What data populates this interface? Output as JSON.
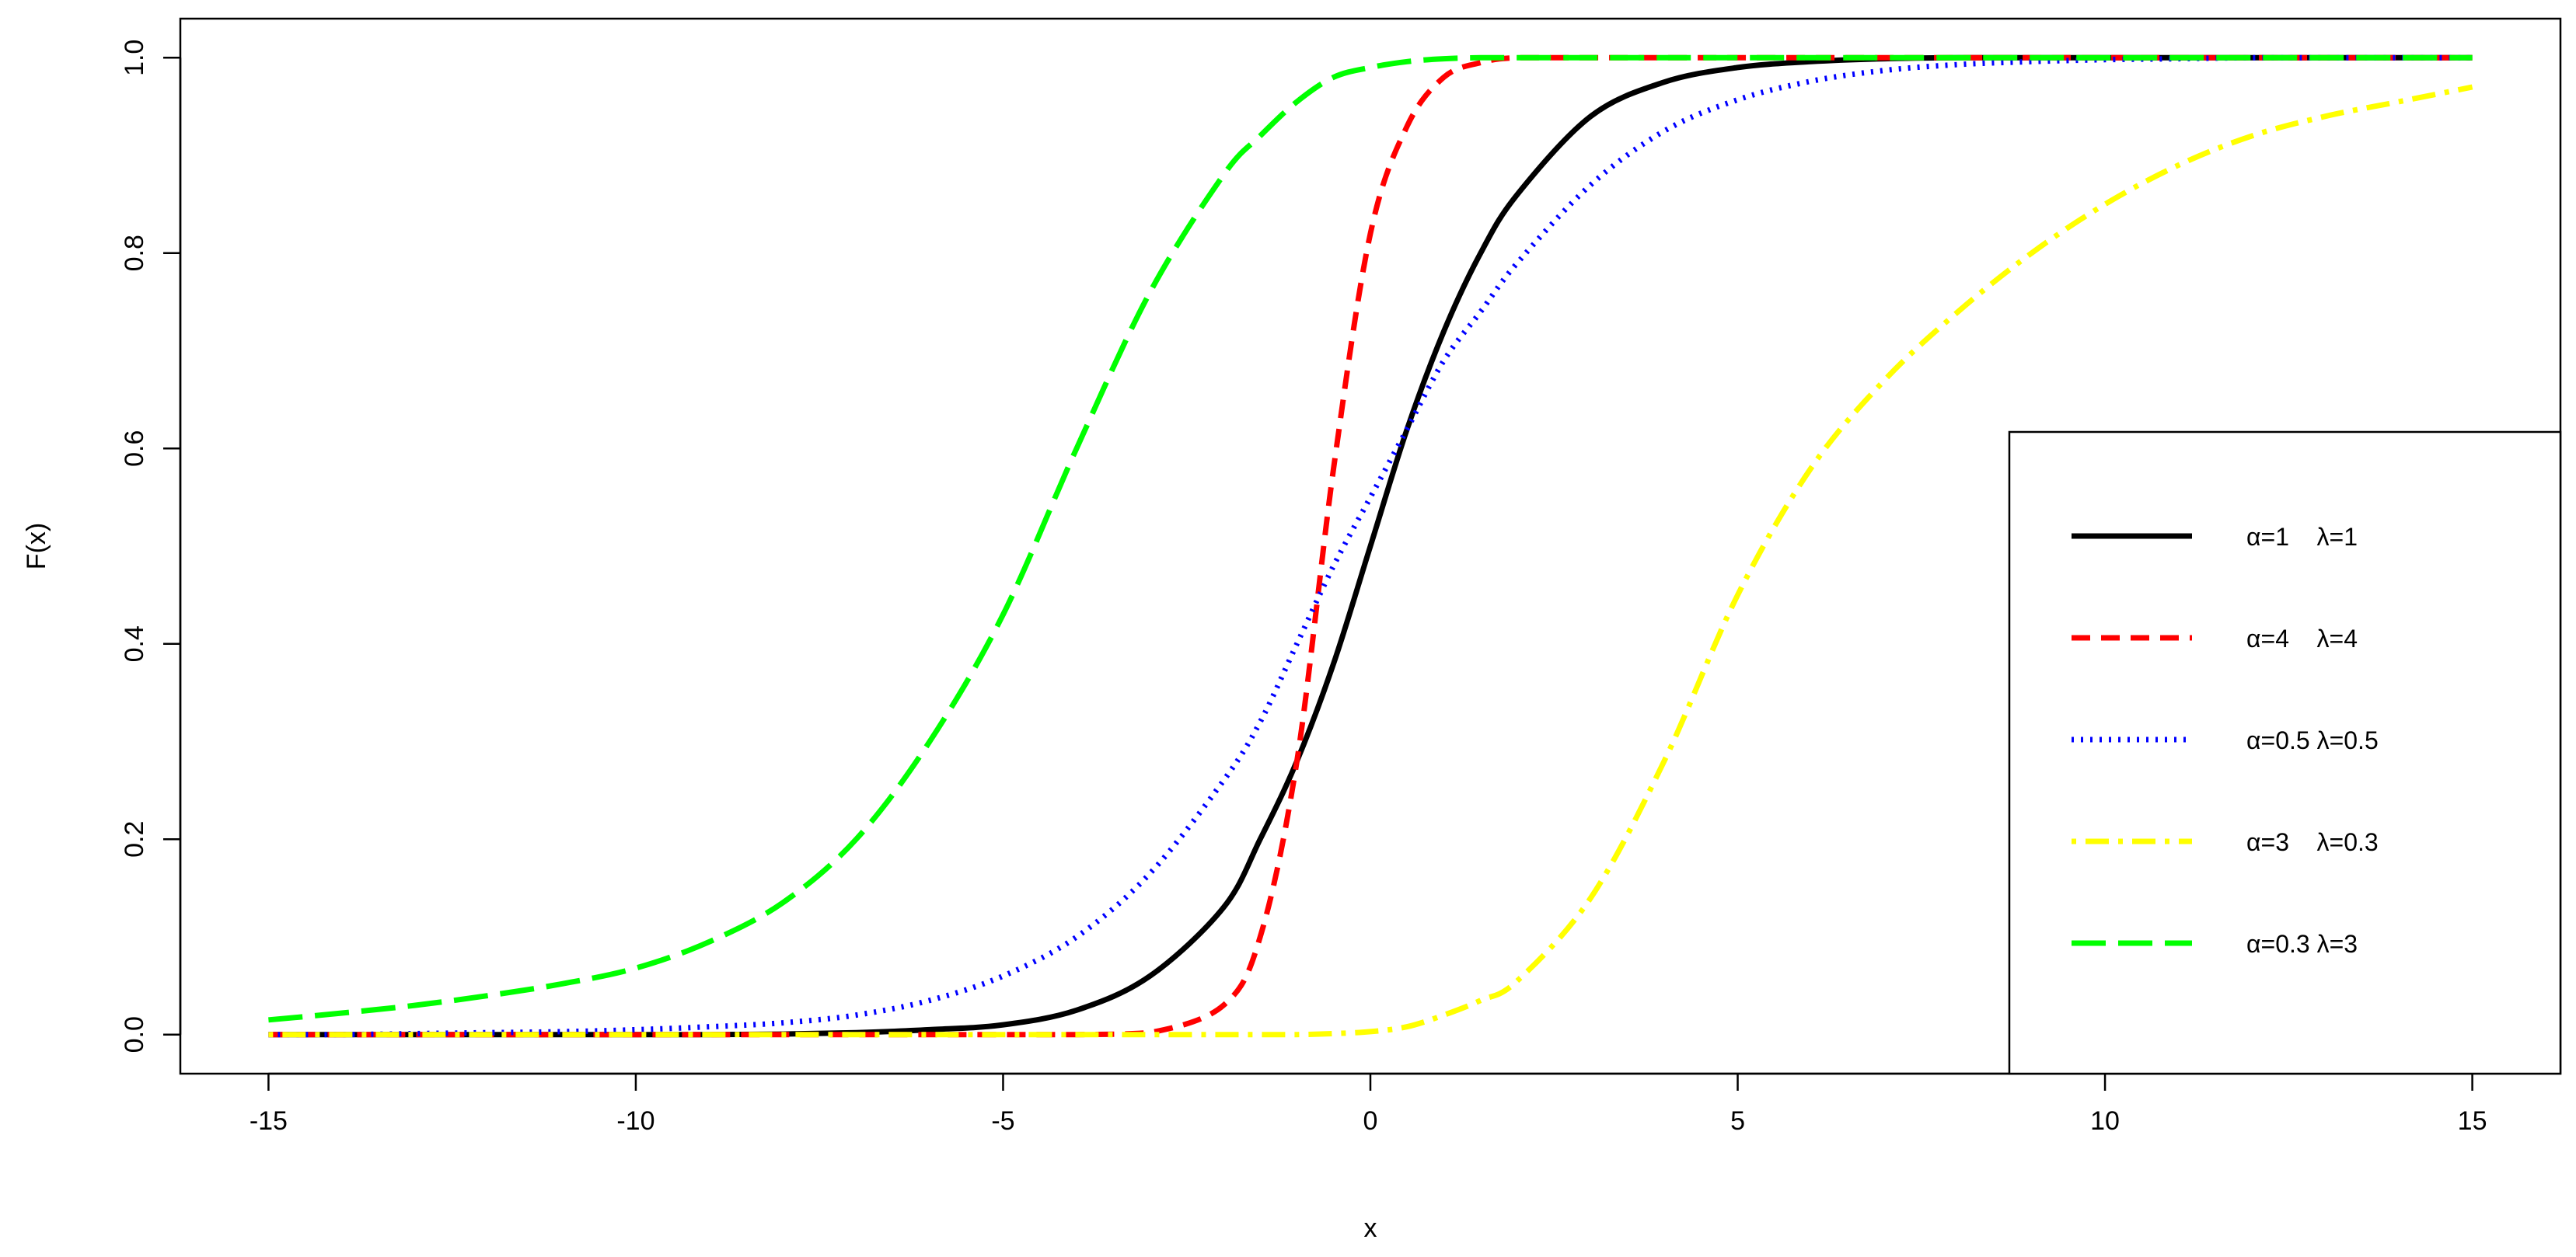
{
  "chart_data": {
    "type": "line",
    "title": "",
    "xlabel": "x",
    "ylabel": "F(x)",
    "xlim": [
      -16.2,
      16.2
    ],
    "ylim": [
      -0.04,
      1.04
    ],
    "xticks": [
      -15,
      -10,
      -5,
      0,
      5,
      10,
      15
    ],
    "xtick_labels": [
      "-15",
      "-10",
      "-5",
      "0",
      "5",
      "10",
      "15"
    ],
    "yticks": [
      0,
      0.2,
      0.4,
      0.6,
      0.8,
      1
    ],
    "ytick_labels": [
      "0.0",
      "0.2",
      "0.4",
      "0.6",
      "0.8",
      "1.0"
    ],
    "grid": false,
    "legend_position": "right",
    "x": [
      -15,
      -14,
      -13,
      -12,
      -11,
      -10,
      -9,
      -8,
      -7,
      -6,
      -5,
      -4,
      -3,
      -2,
      -1.5,
      -1,
      -0.5,
      0,
      0.5,
      1,
      1.5,
      2,
      3,
      4,
      5,
      6,
      7,
      8,
      9,
      10,
      11,
      12,
      13,
      14,
      15
    ],
    "series": [
      {
        "name": "α=1    λ=1",
        "color": "#000000",
        "dash": "solid",
        "values": [
          0,
          0,
          0,
          0,
          0,
          0,
          0,
          0.0005,
          0.002,
          0.005,
          0.01,
          0.025,
          0.06,
          0.13,
          0.2,
          0.28,
          0.38,
          0.5,
          0.62,
          0.72,
          0.8,
          0.86,
          0.94,
          0.975,
          0.99,
          0.996,
          0.999,
          1,
          1,
          1,
          1,
          1,
          1,
          1,
          1
        ]
      },
      {
        "name": "α=4    λ=4",
        "color": "#ff0000",
        "dash": "dashed",
        "values": [
          0,
          0,
          0,
          0,
          0,
          0,
          0,
          0,
          0,
          0,
          0,
          0,
          0.002,
          0.03,
          0.1,
          0.28,
          0.58,
          0.82,
          0.93,
          0.98,
          0.995,
          1,
          1,
          1,
          1,
          1,
          1,
          1,
          1,
          1,
          1,
          1,
          1,
          1,
          1
        ]
      },
      {
        "name": "α=0.5 λ=0.5",
        "color": "#0000ff",
        "dash": "dotted",
        "values": [
          0,
          0,
          0.001,
          0.002,
          0.003,
          0.005,
          0.008,
          0.012,
          0.02,
          0.035,
          0.06,
          0.1,
          0.165,
          0.26,
          0.32,
          0.4,
          0.48,
          0.55,
          0.62,
          0.69,
          0.74,
          0.79,
          0.87,
          0.925,
          0.957,
          0.976,
          0.987,
          0.993,
          0.996,
          0.998,
          0.999,
          1,
          1,
          1,
          1
        ]
      },
      {
        "name": "α=3    λ=0.3",
        "color": "#ffff00",
        "dash": "dashdot",
        "values": [
          0,
          0,
          0,
          0,
          0,
          0,
          0,
          0,
          0,
          0,
          0,
          0,
          0,
          0,
          0,
          0,
          0.001,
          0.003,
          0.008,
          0.02,
          0.035,
          0.055,
          0.14,
          0.28,
          0.45,
          0.58,
          0.67,
          0.74,
          0.8,
          0.85,
          0.89,
          0.92,
          0.94,
          0.955,
          0.97
        ]
      },
      {
        "name": "α=0.3 λ=3",
        "color": "#00ff00",
        "dash": "longdash",
        "values": [
          0.015,
          0.022,
          0.03,
          0.04,
          0.052,
          0.068,
          0.095,
          0.135,
          0.2,
          0.3,
          0.43,
          0.6,
          0.76,
          0.88,
          0.92,
          0.955,
          0.98,
          0.99,
          0.996,
          0.999,
          1,
          1,
          1,
          1,
          1,
          1,
          1,
          1,
          1,
          1,
          1,
          1,
          1,
          1,
          1
        ]
      }
    ]
  }
}
